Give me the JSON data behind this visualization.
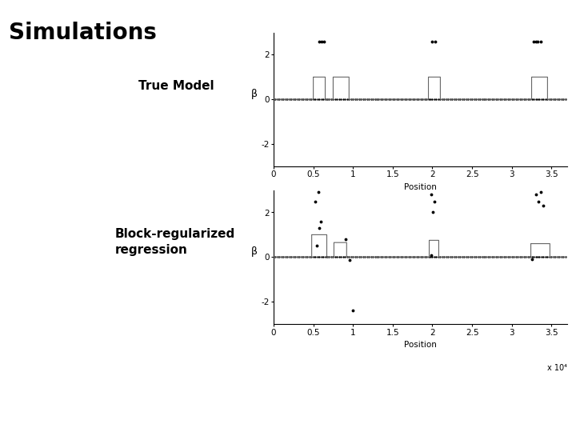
{
  "title": "Simulations",
  "label1": "True Model",
  "label2": "Block-regularized\nregression",
  "xlabel": "Position",
  "ylabel": "β",
  "xlim": [
    0,
    37000
  ],
  "xticks": [
    0,
    5000,
    10000,
    15000,
    20000,
    25000,
    30000,
    35000
  ],
  "xticklabels": [
    "0",
    "0.5",
    "1",
    "1.5",
    "2",
    "2.5",
    "3",
    "3.5"
  ],
  "xscale_label": "x 10⁴",
  "ylim1": [
    -3,
    3
  ],
  "yticks1": [
    -2,
    0,
    2
  ],
  "ylim2": [
    -3,
    3
  ],
  "yticks2": [
    -2,
    0,
    2
  ],
  "step_regions_true": [
    {
      "start": 5000,
      "end": 6500,
      "height": 1.0
    },
    {
      "start": 7500,
      "end": 9500,
      "height": 1.0
    },
    {
      "start": 19500,
      "end": 21000,
      "height": 1.0
    },
    {
      "start": 32500,
      "end": 34500,
      "height": 1.0
    }
  ],
  "step_regions_est": [
    {
      "start": 4800,
      "end": 6700,
      "height": 1.0
    },
    {
      "start": 7600,
      "end": 9200,
      "height": 0.65
    },
    {
      "start": 19600,
      "end": 20800,
      "height": 0.75
    },
    {
      "start": 32400,
      "end": 34800,
      "height": 0.6
    }
  ],
  "dots_true_above": [
    [
      5700,
      2.6
    ],
    [
      6000,
      2.6
    ],
    [
      6300,
      2.6
    ],
    [
      20000,
      2.6
    ],
    [
      20400,
      2.6
    ],
    [
      32700,
      2.6
    ],
    [
      33000,
      2.6
    ],
    [
      33300,
      2.6
    ],
    [
      33700,
      2.6
    ]
  ],
  "dots_est_above": [
    [
      5200,
      2.5
    ],
    [
      5600,
      2.9
    ],
    [
      5900,
      1.6
    ],
    [
      19800,
      2.8
    ],
    [
      20300,
      2.5
    ],
    [
      20100,
      2.0
    ],
    [
      33000,
      2.8
    ],
    [
      33400,
      2.5
    ],
    [
      33700,
      2.9
    ],
    [
      34000,
      2.3
    ]
  ],
  "dots_est_extra": [
    [
      5400,
      0.5
    ],
    [
      5700,
      1.3
    ],
    [
      9100,
      0.8
    ],
    [
      9600,
      -0.15
    ],
    [
      10000,
      -2.4
    ],
    [
      19900,
      0.1
    ],
    [
      32500,
      -0.1
    ]
  ],
  "line_color": "#666666",
  "dot_color": "#000000",
  "background_color": "#ffffff",
  "title_fontsize": 20,
  "label_fontsize": 11,
  "axis_fontsize": 7.5
}
